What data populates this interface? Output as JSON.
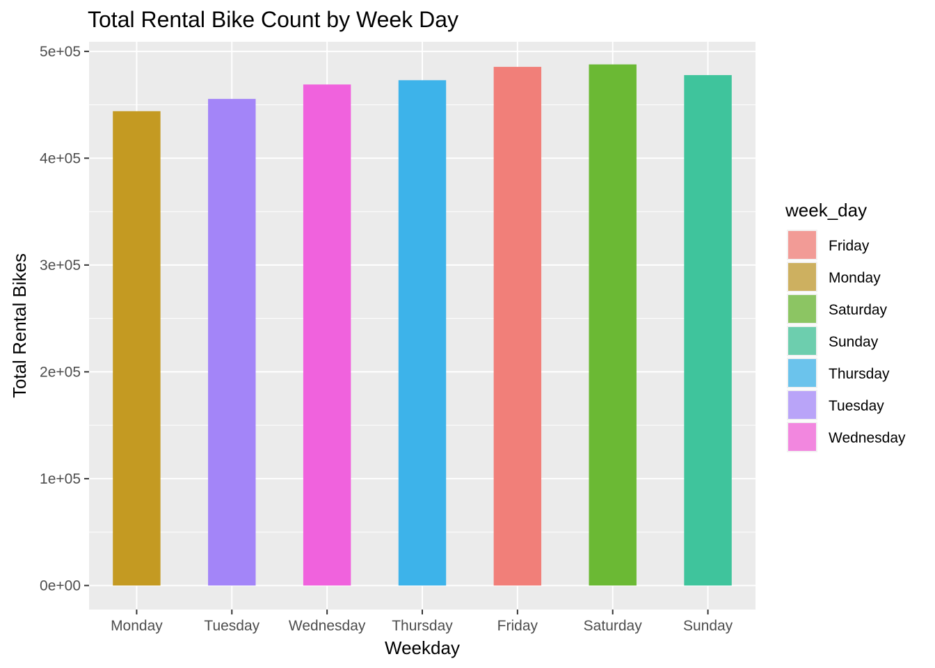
{
  "chart_data": {
    "type": "bar",
    "title": "Total Rental Bike Count by Week Day",
    "xlabel": "Weekday",
    "ylabel": "Total Rental Bikes",
    "categories": [
      "Monday",
      "Tuesday",
      "Wednesday",
      "Thursday",
      "Friday",
      "Saturday",
      "Sunday"
    ],
    "values": [
      444000,
      455500,
      469000,
      473000,
      485500,
      487800,
      477800
    ],
    "ylim": [
      -22500,
      509000
    ],
    "yticks": [
      0,
      100000,
      200000,
      300000,
      400000,
      500000
    ],
    "ytick_labels": [
      "0e+00",
      "1e+05",
      "2e+05",
      "3e+05",
      "4e+05",
      "5e+05"
    ],
    "grid": true,
    "fill_variable": "week_day",
    "colors": {
      "Monday": "#C49A22",
      "Tuesday": "#A385F8",
      "Wednesday": "#F062DD",
      "Thursday": "#3DB3EA",
      "Friday": "#F17F79",
      "Saturday": "#6BB934",
      "Sunday": "#3FC49C"
    },
    "legend": {
      "title": "week_day",
      "placement": "right",
      "items": [
        "Friday",
        "Monday",
        "Saturday",
        "Sunday",
        "Thursday",
        "Tuesday",
        "Wednesday"
      ],
      "colors": [
        "#F29B96",
        "#CDB060",
        "#8CC563",
        "#6DCEAE",
        "#6BC3EC",
        "#B9A4F8",
        "#F287DF"
      ]
    }
  }
}
